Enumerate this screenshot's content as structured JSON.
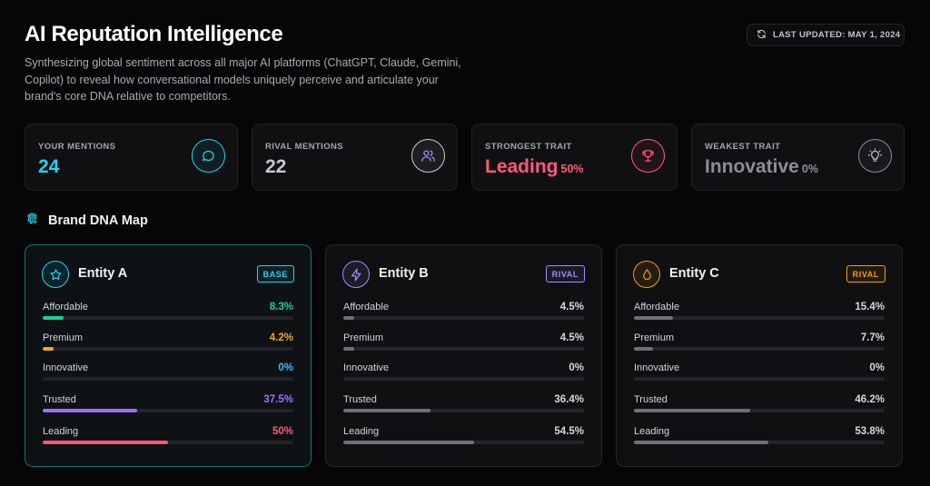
{
  "header": {
    "title": "AI Reputation Intelligence",
    "subtitle": "Synthesizing global sentiment across all major AI platforms (ChatGPT, Claude, Gemini, Copilot) to reveal how conversational models uniquely perceive and articulate your brand's core DNA relative to competitors.",
    "last_updated": "LAST UPDATED: MAY 1, 2024",
    "last_updated_icon": "refresh-icon"
  },
  "stats": [
    {
      "label": "YOUR MENTIONS",
      "value": "24",
      "pct": "",
      "color": "#22d3ee",
      "icon": "chat-bubble-icon"
    },
    {
      "label": "RIVAL MENTIONS",
      "value": "22",
      "pct": "",
      "color": "#c8c8d0",
      "icon": "users-icon"
    },
    {
      "label": "STRONGEST TRAIT",
      "value": "Leading",
      "pct": "50%",
      "color": "#fb5a79",
      "icon": "trophy-icon"
    },
    {
      "label": "WEAKEST TRAIT",
      "value": "Innovative",
      "pct": "0%",
      "color": "#8d8d96",
      "icon": "lightbulb-icon"
    }
  ],
  "section": {
    "title": "Brand DNA Map",
    "icon": "fingerprint-icon"
  },
  "entities": [
    {
      "name": "Entity A",
      "badge": "BASE",
      "icon": "star-icon",
      "accent": "#22d3ee",
      "traits": [
        {
          "name": "Affordable",
          "value": "8.3%",
          "fraction": 0.083,
          "color": "#10d39b"
        },
        {
          "name": "Premium",
          "value": "4.2%",
          "fraction": 0.042,
          "color": "#f5a524"
        },
        {
          "name": "Innovative",
          "value": "0%",
          "fraction": 0.0,
          "color": "#38bdf8"
        },
        {
          "name": "Trusted",
          "value": "37.5%",
          "fraction": 0.375,
          "color": "#a56dfb"
        },
        {
          "name": "Leading",
          "value": "50%",
          "fraction": 0.5,
          "color": "#fb5a79"
        }
      ]
    },
    {
      "name": "Entity B",
      "badge": "RIVAL",
      "icon": "lightning-icon",
      "accent": "#a78bfa",
      "traits": [
        {
          "name": "Affordable",
          "value": "4.5%",
          "fraction": 0.045,
          "color": "#6f6f78"
        },
        {
          "name": "Premium",
          "value": "4.5%",
          "fraction": 0.045,
          "color": "#6f6f78"
        },
        {
          "name": "Innovative",
          "value": "0%",
          "fraction": 0.0,
          "color": "#6f6f78"
        },
        {
          "name": "Trusted",
          "value": "36.4%",
          "fraction": 0.364,
          "color": "#6f6f78"
        },
        {
          "name": "Leading",
          "value": "54.5%",
          "fraction": 0.545,
          "color": "#6f6f78"
        }
      ]
    },
    {
      "name": "Entity C",
      "badge": "RIVAL",
      "icon": "droplet-icon",
      "accent": "#f59e0b",
      "traits": [
        {
          "name": "Affordable",
          "value": "15.4%",
          "fraction": 0.154,
          "color": "#6f6f78"
        },
        {
          "name": "Premium",
          "value": "7.7%",
          "fraction": 0.077,
          "color": "#6f6f78"
        },
        {
          "name": "Innovative",
          "value": "0%",
          "fraction": 0.0,
          "color": "#6f6f78"
        },
        {
          "name": "Trusted",
          "value": "46.2%",
          "fraction": 0.462,
          "color": "#6f6f78"
        },
        {
          "name": "Leading",
          "value": "53.8%",
          "fraction": 0.538,
          "color": "#6f6f78"
        }
      ]
    }
  ]
}
